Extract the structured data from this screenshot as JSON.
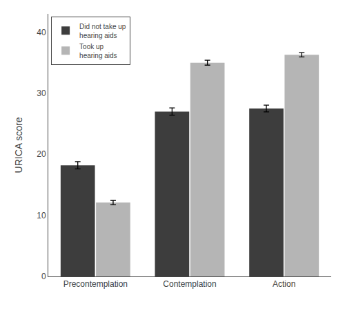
{
  "chart_data": {
    "type": "bar",
    "categories": [
      "Precontemplation",
      "Contemplation",
      "Action"
    ],
    "series": [
      {
        "name": "Did not take up\nhearing aids",
        "color": "#3d3d3d",
        "values": [
          18.2,
          27.0,
          27.5
        ],
        "errors": [
          0.6,
          0.6,
          0.55
        ]
      },
      {
        "name": "Took up\nhearing aids",
        "color": "#b5b5b5",
        "values": [
          12.1,
          35.0,
          36.3
        ],
        "errors": [
          0.35,
          0.4,
          0.35
        ]
      }
    ],
    "ylabel": "URICA score",
    "ylim": [
      0,
      43
    ],
    "yticks": [
      0,
      10,
      20,
      30,
      40
    ],
    "grid": false,
    "legend": "upper left"
  }
}
